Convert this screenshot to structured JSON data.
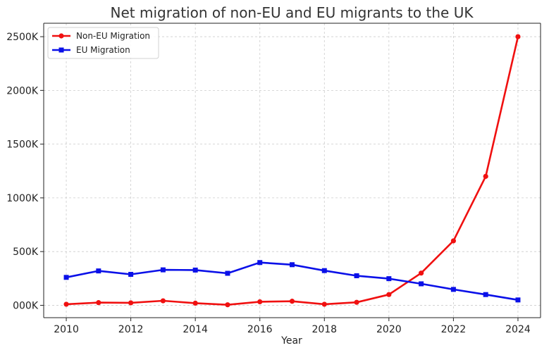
{
  "chart_data": {
    "type": "line",
    "title": "Net migration of non-EU and EU migrants to the UK",
    "xlabel": "Year",
    "ylabel": "",
    "x": [
      2010,
      2011,
      2012,
      2013,
      2014,
      2015,
      2016,
      2017,
      2018,
      2019,
      2020,
      2021,
      2022,
      2023,
      2024
    ],
    "xlim": [
      2009.3,
      2024.7
    ],
    "ylim": [
      -115000,
      2625000
    ],
    "x_ticks": [
      2010,
      2012,
      2014,
      2016,
      2018,
      2020,
      2022,
      2024
    ],
    "x_tick_labels": [
      "2010",
      "2012",
      "2014",
      "2016",
      "2018",
      "2020",
      "2022",
      "2024"
    ],
    "y_ticks": [
      0,
      500000,
      1000000,
      1500000,
      2000000,
      2500000
    ],
    "y_tick_labels": [
      "000K",
      "500K",
      "1000K",
      "1500K",
      "2000K",
      "2500K"
    ],
    "grid": true,
    "legend_position": "top-left",
    "series": [
      {
        "name": "Non-EU Migration",
        "color": "#f01010",
        "marker": "circle",
        "values": [
          10000,
          25000,
          23000,
          42000,
          20000,
          5000,
          33000,
          38000,
          10000,
          28000,
          100000,
          300000,
          600000,
          1200000,
          2500000
        ]
      },
      {
        "name": "EU Migration",
        "color": "#0a10e8",
        "marker": "square",
        "values": [
          260000,
          320000,
          288000,
          330000,
          328000,
          298000,
          398000,
          378000,
          323000,
          275000,
          248000,
          200000,
          148000,
          100000,
          50000
        ]
      }
    ]
  }
}
